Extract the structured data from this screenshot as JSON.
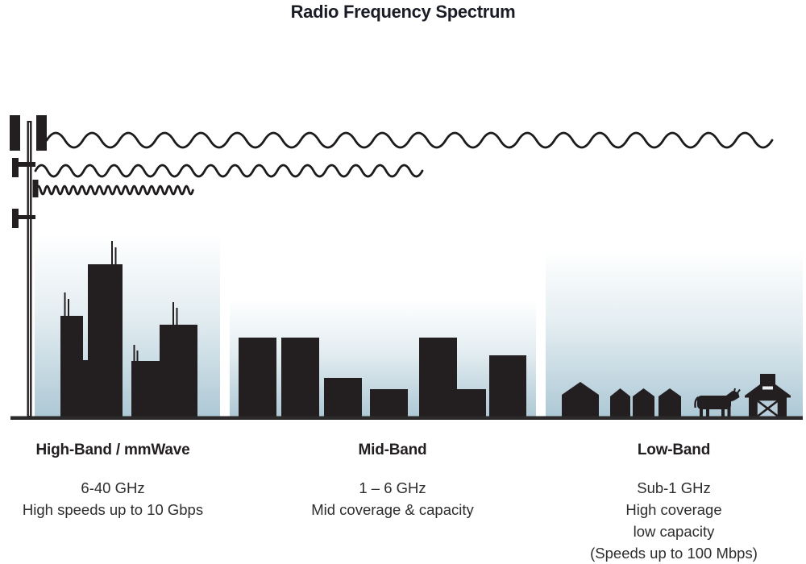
{
  "title": "Radio Frequency Spectrum",
  "bands": [
    {
      "name": "High-Band / mmWave",
      "lines": [
        "6-40 GHz",
        "High speeds up to 10 Gbps"
      ]
    },
    {
      "name": "Mid-Band",
      "lines": [
        "1 – 6 GHz",
        "Mid coverage & capacity"
      ]
    },
    {
      "name": "Low-Band",
      "lines": [
        "Sub-1 GHz",
        "High coverage",
        "low capacity",
        "(Speeds up to 100 Mbps)"
      ]
    }
  ],
  "icons": [
    "cell-tower-icon",
    "low-frequency-wave-icon",
    "mid-frequency-wave-icon",
    "high-frequency-wave-icon",
    "city-skyline-icon",
    "midrise-buildings-icon",
    "houses-icon",
    "cow-icon",
    "barn-icon"
  ],
  "colors": {
    "ink": "#231f20",
    "text": "#2e2c2d",
    "title": "#1a1d26",
    "sky_top": "#ffffff",
    "sky_bottom": "#adc8d5",
    "ground": "#2b2929"
  }
}
